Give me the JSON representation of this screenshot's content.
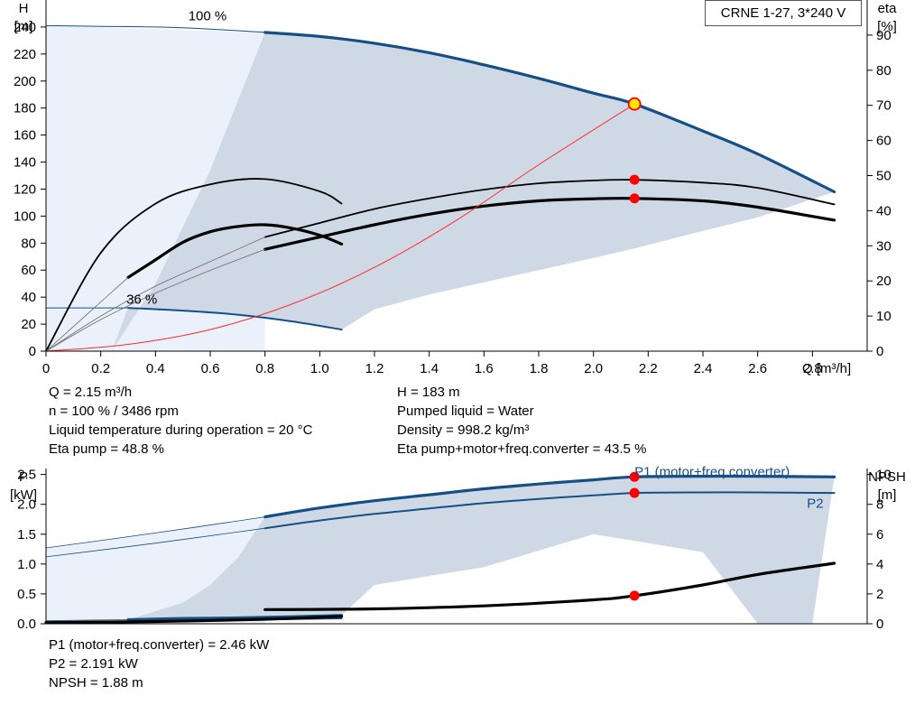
{
  "title_box": "CRNE 1-27, 3*240 V",
  "colors": {
    "curve": "#164f86",
    "eta": "#000000",
    "system": "#ff2a2a",
    "band_light": "#eaf1fa",
    "band_dark": "#cfd9e6",
    "duty_point": "#ff0000",
    "head_point": "#f5e600"
  },
  "chart_data": [
    {
      "type": "line",
      "title": "CRNE 1-27, 3*240 V",
      "xlabel": "Q [m³/h]",
      "ylabel_left": [
        "H",
        "[m]"
      ],
      "ylabel_right": [
        "eta",
        "[%]"
      ],
      "xlim": [
        0,
        3.0
      ],
      "ylim_left": [
        0,
        260
      ],
      "ylim_right": [
        0,
        100
      ],
      "x_ticks": [
        "0",
        "0.2",
        "0.4",
        "0.6",
        "0.8",
        "1.0",
        "1.2",
        "1.4",
        "1.6",
        "1.8",
        "2.0",
        "2.2",
        "2.4",
        "2.6",
        "2.8"
      ],
      "y_ticks_left": [
        "0",
        "20",
        "40",
        "60",
        "80",
        "100",
        "120",
        "140",
        "160",
        "180",
        "200",
        "220",
        "240"
      ],
      "y_ticks_right": [
        "0",
        "10",
        "20",
        "30",
        "40",
        "50",
        "60",
        "70",
        "80",
        "90"
      ],
      "annotations": [
        "100 %",
        "36 %"
      ],
      "series": [
        {
          "name": "100 %",
          "axis": "left",
          "style": "head-max",
          "x": [
            0.8,
            1.0,
            1.2,
            1.4,
            1.6,
            1.8,
            2.0,
            2.15,
            2.4,
            2.6,
            2.88
          ],
          "y": [
            236,
            233,
            228,
            221,
            212,
            202,
            191,
            183,
            163,
            146,
            118
          ]
        },
        {
          "name": "36 %",
          "axis": "left",
          "style": "head-min",
          "x": [
            0.3,
            0.5,
            0.7,
            0.9,
            1.08
          ],
          "y": [
            32,
            30,
            27,
            22,
            16
          ]
        },
        {
          "axis": "left",
          "style": "head-extension",
          "x": [
            0,
            0.2,
            0.4,
            0.6,
            0.8
          ],
          "y": [
            241,
            240.5,
            240,
            238.5,
            236
          ]
        },
        {
          "axis": "left",
          "style": "head-extension",
          "x": [
            0,
            0.3
          ],
          "y": [
            32,
            32
          ]
        },
        {
          "axis": "right",
          "style": "eta-thin",
          "x": [
            0.8,
            1.0,
            1.2,
            1.4,
            1.6,
            1.8,
            2.0,
            2.15,
            2.4,
            2.6,
            2.88
          ],
          "y": [
            32.5,
            36.5,
            40.5,
            43.5,
            46,
            47.8,
            48.6,
            48.8,
            48,
            46.5,
            41.8
          ]
        },
        {
          "axis": "right",
          "style": "eta-thick",
          "x": [
            0.8,
            1.0,
            1.2,
            1.4,
            1.6,
            1.8,
            2.0,
            2.15,
            2.4,
            2.6,
            2.88
          ],
          "y": [
            29,
            32.5,
            36,
            39,
            41.3,
            42.8,
            43.4,
            43.5,
            42.8,
            41,
            37.3
          ]
        },
        {
          "axis": "right",
          "style": "eta-thin",
          "x": [
            0,
            0.2,
            0.4,
            0.6,
            0.8,
            1.0,
            1.08
          ],
          "y": [
            0,
            28,
            42,
            47.5,
            49,
            45.5,
            42
          ]
        },
        {
          "axis": "right",
          "style": "eta-thick",
          "x": [
            0.3,
            0.4,
            0.5,
            0.6,
            0.7,
            0.8,
            0.9,
            1.0,
            1.08
          ],
          "y": [
            21,
            26,
            31,
            34,
            35.5,
            36,
            35,
            33,
            30.5
          ]
        },
        {
          "axis": "right",
          "style": "eta-fade",
          "x": [
            0,
            0.2,
            0.4,
            0.6,
            0.8
          ],
          "y": [
            0,
            10,
            18.5,
            25.5,
            32.5
          ]
        },
        {
          "axis": "right",
          "style": "eta-fade",
          "x": [
            0,
            0.1,
            0.2,
            0.3
          ],
          "y": [
            0,
            7,
            14,
            21
          ]
        },
        {
          "axis": "right",
          "style": "eta-fade",
          "x": [
            0,
            0.2,
            0.4,
            0.6,
            0.8
          ],
          "y": [
            0,
            9,
            16.5,
            23,
            29
          ]
        },
        {
          "axis": "left",
          "style": "system",
          "x": [
            0,
            0.3,
            0.6,
            0.9,
            1.2,
            1.5,
            1.8,
            2.15
          ],
          "y": [
            0,
            5,
            16,
            35,
            62,
            97,
            138,
            183
          ]
        }
      ],
      "bands": [
        {
          "style": "light",
          "x": [
            0,
            0.8,
            0.8,
            0
          ],
          "y": [
            241,
            236,
            0,
            0
          ]
        },
        {
          "style": "dark",
          "x": [
            0.24,
            0.4,
            0.6,
            0.8,
            1.0,
            1.2,
            1.4,
            1.6,
            1.8,
            2.0,
            2.15,
            2.4,
            2.6,
            2.88,
            2.6,
            2.4,
            2.15,
            2.0,
            1.8,
            1.6,
            1.4,
            1.2,
            1.08,
            0.9,
            0.7,
            0.5,
            0.3
          ],
          "y": [
            0,
            50,
            134,
            236,
            233,
            228,
            221,
            212,
            202,
            191,
            183,
            163,
            146,
            118,
            99,
            89,
            76,
            69,
            60,
            51,
            42,
            31,
            16,
            22,
            27,
            30,
            32
          ]
        }
      ],
      "markers": [
        {
          "axis": "left",
          "x": 2.15,
          "y": 183,
          "style": "head-point"
        },
        {
          "axis": "right",
          "x": 2.15,
          "y": 48.8,
          "style": "duty-point"
        },
        {
          "axis": "right",
          "x": 2.15,
          "y": 43.5,
          "style": "duty-point"
        }
      ]
    },
    {
      "type": "line",
      "xlabel": "",
      "ylabel_left": [
        "P",
        "[kW]"
      ],
      "ylabel_right": [
        "NPSH",
        "[m]"
      ],
      "xlim": [
        0,
        3.0
      ],
      "ylim_left": [
        0,
        2.6
      ],
      "ylim_right": [
        0,
        10.4
      ],
      "y_ticks_left": [
        "0.0",
        "0.5",
        "1.0",
        "1.5",
        "2.0",
        "2.5"
      ],
      "y_ticks_right": [
        "0",
        "2",
        "4",
        "6",
        "8",
        "10"
      ],
      "series": [
        {
          "name": "P1 (motor+freq.converter)",
          "axis": "left",
          "style": "p1",
          "x": [
            0.8,
            1.0,
            1.2,
            1.4,
            1.6,
            1.8,
            2.0,
            2.15,
            2.4,
            2.6,
            2.88
          ],
          "y": [
            1.79,
            1.94,
            2.06,
            2.16,
            2.26,
            2.34,
            2.41,
            2.46,
            2.47,
            2.47,
            2.46
          ]
        },
        {
          "name": "P2",
          "axis": "left",
          "style": "p2",
          "x": [
            0.8,
            1.0,
            1.2,
            1.4,
            1.6,
            1.8,
            2.0,
            2.15,
            2.4,
            2.6,
            2.88
          ],
          "y": [
            1.6,
            1.73,
            1.84,
            1.93,
            2.02,
            2.09,
            2.15,
            2.19,
            2.2,
            2.2,
            2.19
          ]
        },
        {
          "axis": "left",
          "style": "p-fade",
          "x": [
            0,
            0.4,
            0.8
          ],
          "y": [
            1.27,
            1.52,
            1.79
          ]
        },
        {
          "axis": "left",
          "style": "p-fade",
          "x": [
            0,
            0.4,
            0.8
          ],
          "y": [
            1.12,
            1.35,
            1.6
          ]
        },
        {
          "axis": "left",
          "style": "p1-low",
          "x": [
            0.3,
            0.5,
            0.7,
            0.9,
            1.08
          ],
          "y": [
            0.07,
            0.09,
            0.1,
            0.12,
            0.14
          ]
        },
        {
          "axis": "left",
          "style": "p2-low",
          "x": [
            0.3,
            0.5,
            0.7,
            0.9,
            1.08
          ],
          "y": [
            0.04,
            0.06,
            0.07,
            0.08,
            0.09
          ]
        },
        {
          "axis": "left",
          "style": "p-fade",
          "x": [
            0,
            0.3
          ],
          "y": [
            0.05,
            0.07
          ]
        },
        {
          "axis": "left",
          "style": "p-fade",
          "x": [
            0,
            0.3
          ],
          "y": [
            0.02,
            0.04
          ]
        },
        {
          "axis": "right",
          "style": "npsh",
          "x": [
            0.8,
            1.2,
            1.6,
            2.0,
            2.15,
            2.4,
            2.6,
            2.88
          ],
          "y": [
            0.95,
            1.0,
            1.2,
            1.6,
            1.88,
            2.6,
            3.3,
            4.05
          ]
        },
        {
          "axis": "right",
          "style": "npsh",
          "x": [
            0,
            0.4,
            0.8,
            1.08
          ],
          "y": [
            0.08,
            0.15,
            0.3,
            0.5
          ]
        }
      ],
      "bands": [
        {
          "style": "light",
          "x": [
            0,
            0.8,
            0.8,
            0
          ],
          "y": [
            1.27,
            1.79,
            0,
            0
          ]
        },
        {
          "style": "dark",
          "x": [
            0.28,
            0.5,
            0.6,
            0.7,
            0.8,
            1.2,
            1.6,
            2.0,
            2.15,
            2.4,
            2.6,
            2.88,
            2.8,
            2.6,
            2.4,
            2.0,
            1.6,
            1.2,
            1.08,
            0.3
          ],
          "y": [
            0.04,
            0.35,
            0.65,
            1.1,
            1.79,
            2.06,
            2.26,
            2.41,
            2.46,
            2.47,
            2.47,
            2.46,
            0,
            0,
            1.2,
            1.5,
            0.95,
            0.65,
            0.14,
            0.07
          ]
        }
      ],
      "labels": [
        {
          "text": "P1 (motor+freq.converter)",
          "x": 2.15,
          "y": 2.55,
          "axis": "left"
        },
        {
          "text": "P2",
          "x": 2.78,
          "y": 2.02,
          "axis": "left"
        }
      ],
      "markers": [
        {
          "axis": "left",
          "x": 2.15,
          "y": 2.46,
          "style": "duty-point"
        },
        {
          "axis": "left",
          "x": 2.15,
          "y": 2.191,
          "style": "duty-point"
        },
        {
          "axis": "right",
          "x": 2.15,
          "y": 1.88,
          "style": "duty-point"
        }
      ]
    }
  ],
  "info_top_left": [
    "Q = 2.15 m³/h",
    "n = 100 % / 3486 rpm",
    "Liquid temperature during operation = 20 °C",
    "Eta pump = 48.8 %"
  ],
  "info_top_right": [
    "H = 183 m",
    "Pumped liquid = Water",
    "Density = 998.2 kg/m³",
    "Eta pump+motor+freq.converter = 43.5 %"
  ],
  "info_bottom": [
    "P1 (motor+freq.converter) = 2.46 kW",
    "P2 = 2.191 kW",
    "NPSH = 1.88 m"
  ]
}
